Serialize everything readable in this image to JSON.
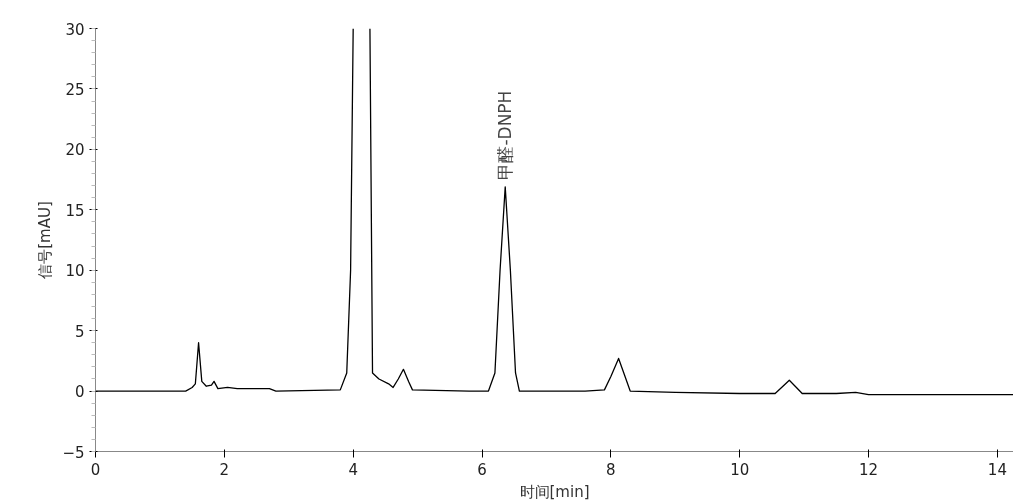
{
  "chart_data": {
    "type": "line",
    "xlabel": "时间[min]",
    "ylabel": "信号[mAU]",
    "xlim": [
      0,
      14.25
    ],
    "ylim": [
      -5,
      30
    ],
    "xticks": [
      0,
      2,
      4,
      6,
      8,
      10,
      12,
      14
    ],
    "yticks": [
      -5,
      0,
      5,
      10,
      15,
      20,
      25,
      30
    ],
    "grid": false,
    "marker": "none",
    "series": [
      {
        "color": "#000000",
        "line_style": "solid",
        "x": [
          0,
          1.4,
          1.5,
          1.55,
          1.6,
          1.65,
          1.72,
          1.8,
          1.84,
          1.9,
          2.05,
          2.2,
          2.7,
          2.8,
          3.8,
          3.9,
          3.96,
          4.0,
          4.13,
          4.26,
          4.3,
          4.4,
          4.55,
          4.62,
          4.7,
          4.78,
          4.86,
          4.92,
          5.8,
          6.1,
          6.2,
          6.28,
          6.36,
          6.44,
          6.52,
          6.58,
          7.6,
          7.9,
          8.0,
          8.12,
          8.22,
          8.3,
          9.0,
          10.0,
          10.55,
          10.65,
          10.77,
          10.88,
          10.97,
          11.5,
          11.8,
          12.0,
          14.25
        ],
        "values": [
          0,
          0,
          0.3,
          0.6,
          4.0,
          0.8,
          0.4,
          0.5,
          0.8,
          0.2,
          0.3,
          0.2,
          0.2,
          0,
          0.1,
          1.5,
          10,
          30,
          null,
          30,
          1.5,
          1.0,
          0.6,
          0.3,
          1.0,
          1.8,
          0.8,
          0.1,
          0,
          0,
          1.5,
          10,
          16.9,
          10,
          1.5,
          0,
          0,
          0.1,
          1.2,
          2.7,
          1.2,
          0,
          -0.1,
          -0.2,
          -0.2,
          0.3,
          0.9,
          0.3,
          -0.2,
          -0.2,
          -0.1,
          -0.3,
          -0.3
        ]
      }
    ],
    "annotations": [
      "甲醛-DNPH"
    ]
  }
}
